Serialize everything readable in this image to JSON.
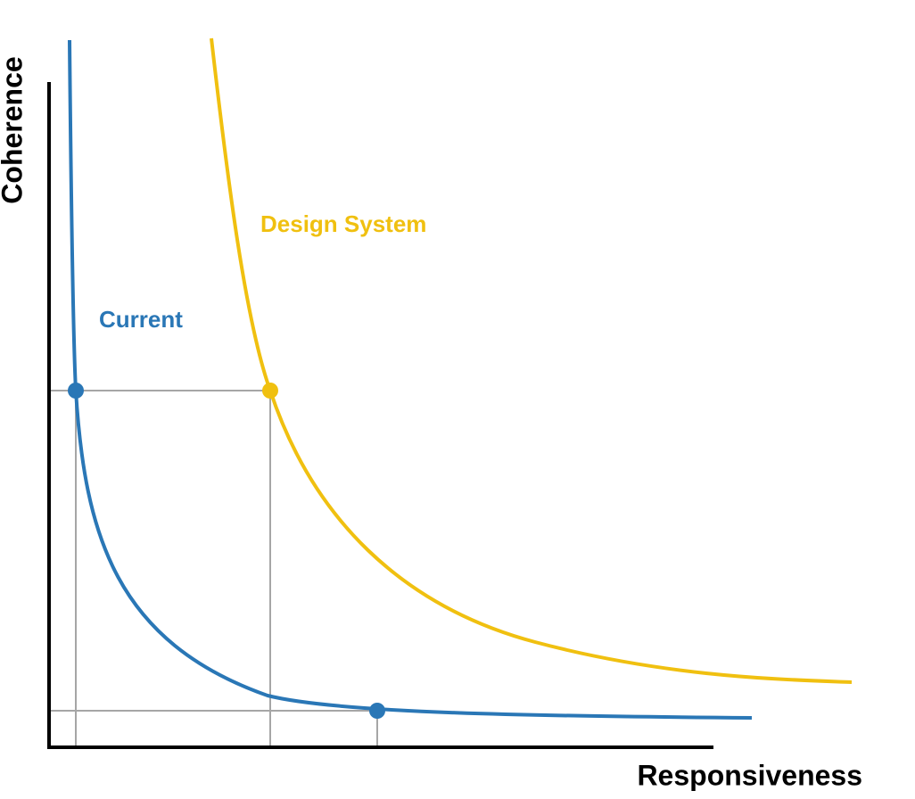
{
  "axes": {
    "y_label": "Coherence",
    "x_label": "Responsiveness"
  },
  "curves": [
    {
      "label": "Design System"
    },
    {
      "label": "Current"
    }
  ]
}
